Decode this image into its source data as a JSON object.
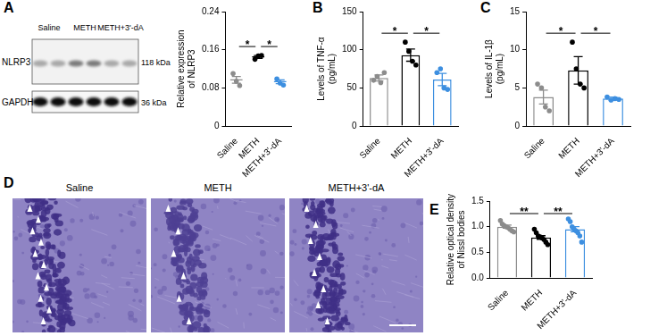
{
  "blot": {
    "panel": "A",
    "lanes": [
      "Saline",
      "METH",
      "METH+3'-dA"
    ],
    "rows": [
      {
        "label": "NLRP3",
        "size": "118 kDa"
      },
      {
        "label": "GAPDH",
        "size": "36 kDa"
      }
    ]
  },
  "histology": {
    "panel": "D",
    "panels": [
      "Saline",
      "METH",
      "METH+3'-dA"
    ]
  },
  "chart_data": [
    {
      "panel": "A",
      "type": "scatter",
      "ylabel": [
        "Relative expression",
        "of NLRP3"
      ],
      "categories": [
        "Saline",
        "METH",
        "METH+3'-dA"
      ],
      "values": [
        0.097,
        0.145,
        0.093
      ],
      "errors": [
        0.007,
        0.003,
        0.004
      ],
      "points": [
        [
          0.11,
          0.094,
          0.085
        ],
        [
          0.14,
          0.147,
          0.148
        ],
        [
          0.099,
          0.09,
          0.086
        ]
      ],
      "colors": [
        "#8c8c8c",
        "#000000",
        "#3d8fe0"
      ],
      "ylim": [
        0,
        0.24
      ],
      "yticks": [
        0,
        0.08,
        0.16,
        0.24
      ],
      "significance": [
        {
          "pair": [
            "Saline",
            "METH"
          ],
          "label": "*"
        },
        {
          "pair": [
            "METH",
            "METH+3'-dA"
          ],
          "label": "*"
        }
      ]
    },
    {
      "panel": "B",
      "type": "bar",
      "ylabel": [
        "Levels of TNF-α",
        "(pg/mL)"
      ],
      "categories": [
        "Saline",
        "METH",
        "METH+3'-dA"
      ],
      "values": [
        63,
        93,
        61
      ],
      "errors": [
        4,
        8,
        8
      ],
      "points": [
        [
          60,
          65,
          57,
          70
        ],
        [
          110,
          98,
          85,
          80
        ],
        [
          70,
          75,
          50,
          48
        ]
      ],
      "colors": [
        "#8c8c8c",
        "#000000",
        "#3d8fe0"
      ],
      "ylim": [
        0,
        150
      ],
      "yticks": [
        0,
        50,
        100,
        150
      ],
      "significance": [
        {
          "pair": [
            "Saline",
            "METH"
          ],
          "label": "*"
        },
        {
          "pair": [
            "METH",
            "METH+3'-dA"
          ],
          "label": "*"
        }
      ]
    },
    {
      "panel": "C",
      "type": "bar",
      "ylabel": [
        "Levels of IL-1β",
        "(pg/mL)"
      ],
      "categories": [
        "Saline",
        "METH",
        "METH+3'-dA"
      ],
      "values": [
        3.8,
        7.3,
        3.6
      ],
      "errors": [
        0.9,
        1.8,
        0.2
      ],
      "points": [
        [
          5.5,
          5,
          2.5,
          2
        ],
        [
          11,
          7.5,
          5.5,
          5
        ],
        [
          3.8,
          3.4,
          3.6,
          3.5
        ]
      ],
      "colors": [
        "#8c8c8c",
        "#000000",
        "#3d8fe0"
      ],
      "ylim": [
        0,
        15
      ],
      "yticks": [
        0,
        5,
        10,
        15
      ],
      "significance": [
        {
          "pair": [
            "Saline",
            "METH"
          ],
          "label": "*"
        },
        {
          "pair": [
            "METH",
            "METH+3'-dA"
          ],
          "label": "*"
        }
      ]
    },
    {
      "panel": "E",
      "type": "bar",
      "ylabel": [
        "Relative optical density",
        "of Nissl bodies"
      ],
      "categories": [
        "Saline",
        "METH",
        "METH+3'-dA"
      ],
      "values": [
        1.0,
        0.79,
        0.95
      ],
      "errors": [
        0.03,
        0.035,
        0.05
      ],
      "points": [
        [
          1.12,
          1.05,
          1.02,
          1.0,
          0.98,
          0.95,
          0.92,
          0.9
        ],
        [
          0.95,
          0.88,
          0.82,
          0.8,
          0.78,
          0.75,
          0.7,
          0.65
        ],
        [
          1.15,
          1.1,
          1.0,
          0.95,
          0.92,
          0.88,
          0.82,
          0.7
        ]
      ],
      "colors": [
        "#8c8c8c",
        "#000000",
        "#3d8fe0"
      ],
      "ylim": [
        0,
        1.5
      ],
      "yticks": [
        {
          "value": 0,
          "label": "0.0"
        },
        {
          "value": 0.5,
          "label": "0.5"
        },
        {
          "value": 1.0,
          "label": "1.0"
        },
        {
          "value": 1.5,
          "label": "1.5"
        }
      ],
      "significance": [
        {
          "pair": [
            "Saline",
            "METH"
          ],
          "label": "**"
        },
        {
          "pair": [
            "METH",
            "METH+3'-dA"
          ],
          "label": "**"
        }
      ]
    }
  ]
}
